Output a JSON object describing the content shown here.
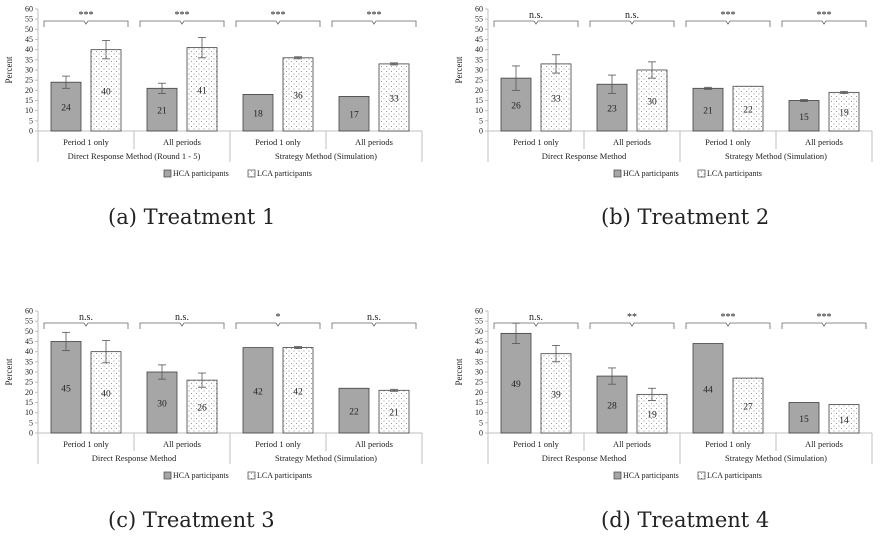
{
  "chart_data": [
    {
      "type": "bar",
      "caption": "(a) Treatment 1",
      "ylabel": "Percent",
      "ylim": [
        0,
        60
      ],
      "yticks": [
        0,
        5,
        10,
        15,
        20,
        25,
        30,
        35,
        40,
        45,
        50,
        55,
        60
      ],
      "groups": [
        {
          "label": "Direct Response Method (Round 1 - 5)",
          "categories": [
            "Period 1 only",
            "All periods"
          ]
        },
        {
          "label": "Strategy Method (Simulation)",
          "categories": [
            "Period 1 only",
            "All periods"
          ]
        }
      ],
      "categories": [
        "Period 1 only",
        "All periods",
        "Period 1 only",
        "All periods"
      ],
      "series": [
        {
          "name": "HCA participants",
          "values": [
            24,
            21,
            18,
            17
          ],
          "errors": [
            3,
            2.5,
            0,
            0
          ]
        },
        {
          "name": "LCA participants",
          "values": [
            40,
            41,
            36,
            33
          ],
          "errors": [
            4.5,
            5,
            0.5,
            0.5
          ]
        }
      ],
      "significance": [
        "***",
        "***",
        "***",
        "***"
      ],
      "legend_position": "bottom"
    },
    {
      "type": "bar",
      "caption": "(b) Treatment 2",
      "ylabel": "Percent",
      "ylim": [
        0,
        60
      ],
      "yticks": [
        0,
        5,
        10,
        15,
        20,
        25,
        30,
        35,
        40,
        45,
        50,
        55,
        60
      ],
      "groups": [
        {
          "label": "Direct Response Method",
          "categories": [
            "Period 1 only",
            "All periods"
          ]
        },
        {
          "label": "Strategy Method (Simulation)",
          "categories": [
            "Period 1 only",
            "All periods"
          ]
        }
      ],
      "categories": [
        "Period 1 only",
        "All periods",
        "Period 1 only",
        "All periods"
      ],
      "series": [
        {
          "name": "HCA participants",
          "values": [
            26,
            23,
            21,
            15
          ],
          "errors": [
            6,
            4.5,
            0.5,
            0.5
          ]
        },
        {
          "name": "LCA participants",
          "values": [
            33,
            30,
            22,
            19
          ],
          "errors": [
            4.5,
            4,
            0.3,
            0.5
          ]
        }
      ],
      "significance": [
        "n.s.",
        "n.s.",
        "***",
        "***"
      ],
      "legend_position": "bottom"
    },
    {
      "type": "bar",
      "caption": "(c) Treatment 3",
      "ylabel": "Percent",
      "ylim": [
        0,
        60
      ],
      "yticks": [
        0,
        5,
        10,
        15,
        20,
        25,
        30,
        35,
        40,
        45,
        50,
        55,
        60
      ],
      "groups": [
        {
          "label": "Direct Response Method",
          "categories": [
            "Period 1 only",
            "All periods"
          ]
        },
        {
          "label": "Strategy Method (Simulation)",
          "categories": [
            "Period 1 only",
            "All periods"
          ]
        }
      ],
      "categories": [
        "Period 1 only",
        "All periods",
        "Period 1 only",
        "All periods"
      ],
      "series": [
        {
          "name": "HCA participants",
          "values": [
            45,
            30,
            42,
            22
          ],
          "errors": [
            4.5,
            3.5,
            0.3,
            0.3
          ]
        },
        {
          "name": "LCA participants",
          "values": [
            40,
            26,
            42,
            21
          ],
          "errors": [
            5.5,
            3.5,
            0.5,
            0.5
          ]
        }
      ],
      "significance": [
        "n.s.",
        "n.s.",
        "*",
        "n.s."
      ],
      "legend_position": "bottom"
    },
    {
      "type": "bar",
      "caption": "(d) Treatment 4",
      "ylabel": "Percent",
      "ylim": [
        0,
        60
      ],
      "yticks": [
        0,
        5,
        10,
        15,
        20,
        25,
        30,
        35,
        40,
        45,
        50,
        55,
        60
      ],
      "groups": [
        {
          "label": "Direct Response Method",
          "categories": [
            "Period 1 only",
            "All periods"
          ]
        },
        {
          "label": "Strategy Method (Simulation)",
          "categories": [
            "Period 1 only",
            "All periods"
          ]
        }
      ],
      "categories": [
        "Period 1 only",
        "All periods",
        "Period 1 only",
        "All periods"
      ],
      "series": [
        {
          "name": "HCA participants",
          "values": [
            49,
            28,
            44,
            15
          ],
          "errors": [
            5,
            4,
            0.3,
            0.3
          ]
        },
        {
          "name": "LCA participants",
          "values": [
            39,
            19,
            27,
            14
          ],
          "errors": [
            4,
            3,
            0.3,
            0.3
          ]
        }
      ],
      "significance": [
        "n.s.",
        "**",
        "***",
        "***"
      ],
      "legend_position": "bottom"
    }
  ],
  "colors": {
    "hca_fill": "#a6a6a6",
    "lca_fill": "#ffffff",
    "bar_stroke": "#404040",
    "axis": "#bfbfbf",
    "dots": "#7f7f7f",
    "text": "#222222"
  }
}
